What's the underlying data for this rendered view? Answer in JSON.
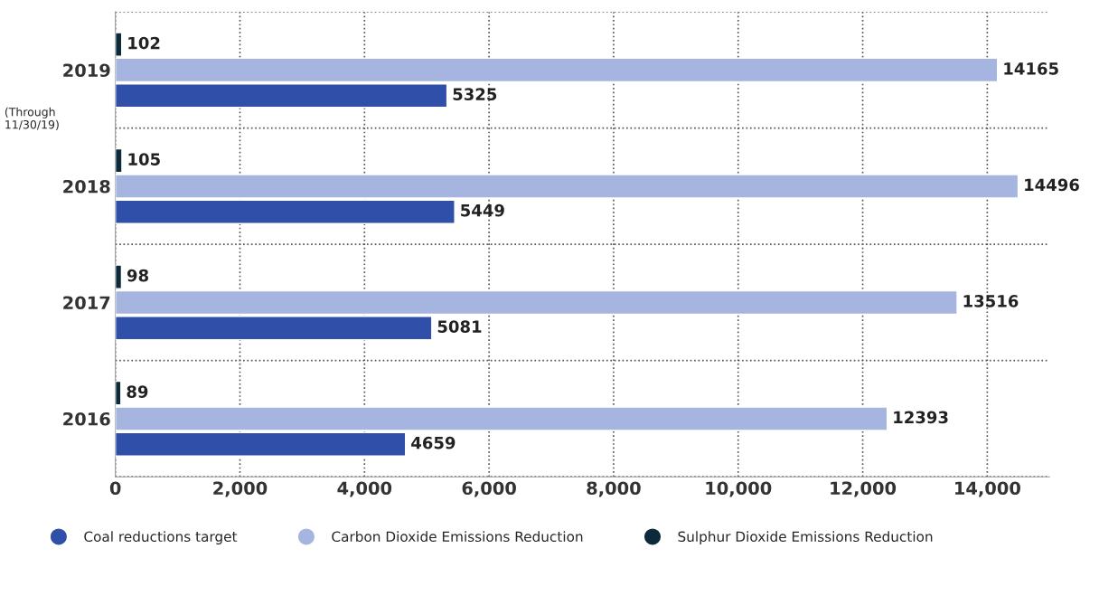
{
  "chart_data": {
    "type": "bar",
    "orientation": "horizontal",
    "categories": [
      "2019",
      "2018",
      "2017",
      "2016"
    ],
    "series": [
      {
        "name": "Coal reductions target",
        "color": "#2f4fa8",
        "values": [
          5325,
          5449,
          5081,
          4659
        ]
      },
      {
        "name": "Carbon Dioxide Emissions Reduction",
        "color": "#a6b4e0",
        "values": [
          14165,
          14496,
          13516,
          12393
        ]
      },
      {
        "name": "Sulphur Dioxide Emissions Reduction",
        "color": "#0d2a3a",
        "values": [
          102,
          105,
          98,
          89
        ]
      }
    ],
    "xlim": [
      0,
      15000
    ],
    "xticks": [
      0,
      {
        "value": 2000,
        "label": "2,000"
      },
      {
        "value": 4000,
        "label": "4,000"
      },
      {
        "value": 6000,
        "label": "6,000"
      },
      {
        "value": 8000,
        "label": "8,000"
      },
      {
        "value": 10000,
        "label": "10,000"
      },
      {
        "value": 12000,
        "label": "12,000"
      },
      {
        "value": 14000,
        "label": "14,000"
      }
    ],
    "data_labels": true,
    "grid": true,
    "legend": "bottom",
    "marker": "circle",
    "annotations": [
      "(Through 11/30/19)"
    ]
  }
}
